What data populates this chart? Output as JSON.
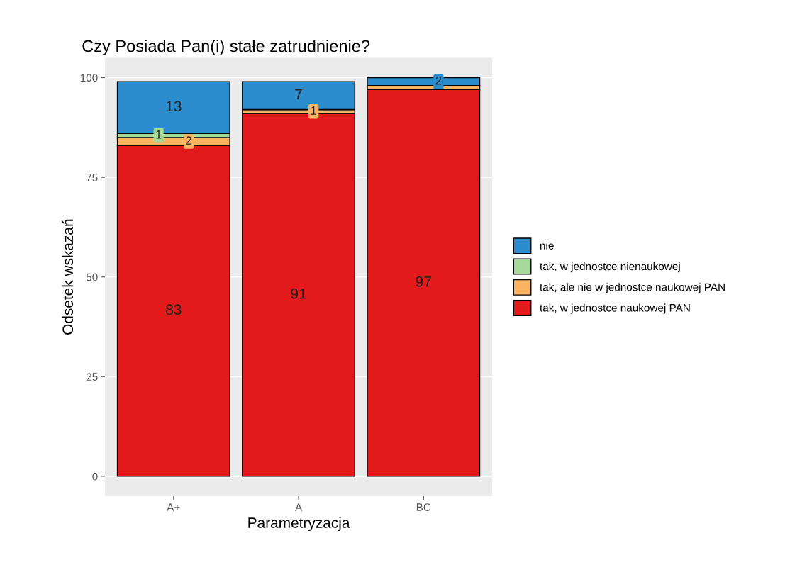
{
  "chart_data": {
    "type": "bar",
    "stacked": true,
    "title": "Czy Posiada Pan(i) stałe zatrudnienie?",
    "xlabel": "Parametryzacja",
    "ylabel": "Odsetek wskazań",
    "categories": [
      "A+",
      "A",
      "BC"
    ],
    "series": [
      {
        "name": "tak, w jednostce naukowej PAN",
        "color": "#e31a1c",
        "values": [
          83,
          91,
          97
        ],
        "value_labels": [
          "83",
          "91",
          "97"
        ]
      },
      {
        "name": "tak, ale nie w jednostce naukowej PAN",
        "color": "#fdb462",
        "values": [
          2,
          1,
          1
        ],
        "value_labels": [
          "2",
          "1",
          null
        ]
      },
      {
        "name": "tak, w jednostce nienaukowej",
        "color": "#a6d99a",
        "values": [
          1,
          null,
          null
        ],
        "value_labels": [
          "1",
          null,
          null
        ]
      },
      {
        "name": "nie",
        "color": "#2b8cce",
        "values": [
          13,
          7,
          2
        ],
        "value_labels": [
          "13",
          "7",
          "2"
        ]
      }
    ],
    "ylim": [
      -5,
      105
    ],
    "yticks": [
      0,
      25,
      50,
      75,
      100
    ],
    "grid": "y",
    "legend": "right"
  }
}
